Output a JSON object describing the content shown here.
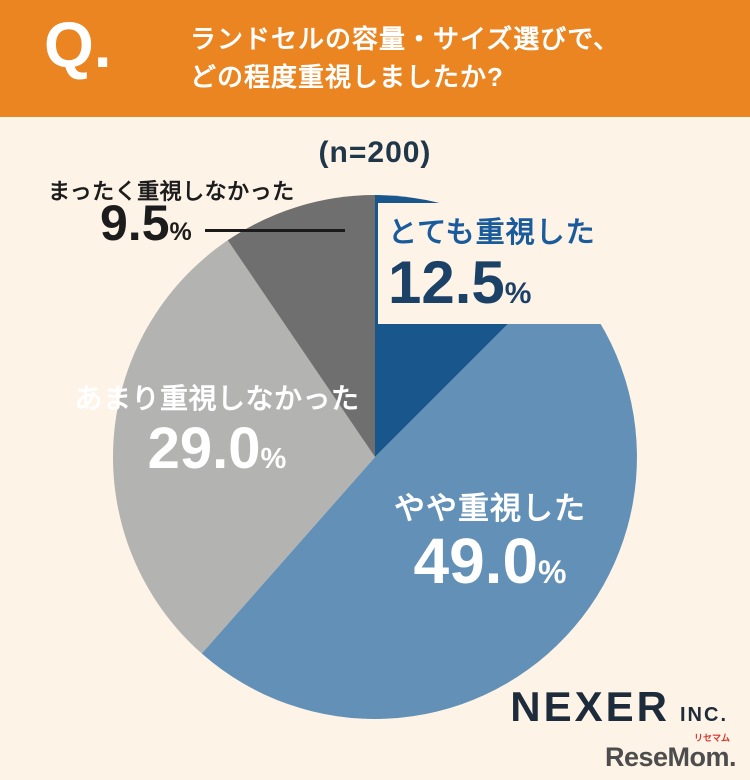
{
  "header": {
    "q_label": "Q.",
    "question_line1": "ランドセルの容量・サイズ選びで、",
    "question_line2": "どの程度重視しましたか?"
  },
  "sample_size_label": "(n=200)",
  "percent_sign": "%",
  "chart_data": {
    "type": "pie",
    "title": "ランドセルの容量・サイズ選びで、どの程度重視しましたか?",
    "sample_size": 200,
    "start_angle_deg": 0,
    "direction": "clockwise",
    "legend_position": "on-chart",
    "segments": [
      {
        "label": "とても重視した",
        "value": 12.5,
        "display_value": "12.5",
        "color": "#19568c",
        "label_color": "#1a5b9c"
      },
      {
        "label": "やや重視した",
        "value": 49.0,
        "display_value": "49.0",
        "color": "#6290b6",
        "label_color": "#ffffff"
      },
      {
        "label": "あまり重視しなかった",
        "value": 29.0,
        "display_value": "29.0",
        "color": "#b3b3b2",
        "label_color": "#ffffff"
      },
      {
        "label": "まったく重視しなかった",
        "value": 9.5,
        "display_value": "9.5",
        "color": "#6f6f6f",
        "label_color": "#1c1c1c"
      }
    ]
  },
  "colors": {
    "header_background": "#ea8522",
    "page_background": "#fdf3e7",
    "sample_text": "#20374a"
  },
  "footer": {
    "brand_name": "NEXER",
    "brand_suffix": "INC.",
    "watermark_text": "ReseMom.",
    "watermark_ruby": "リセマム"
  }
}
